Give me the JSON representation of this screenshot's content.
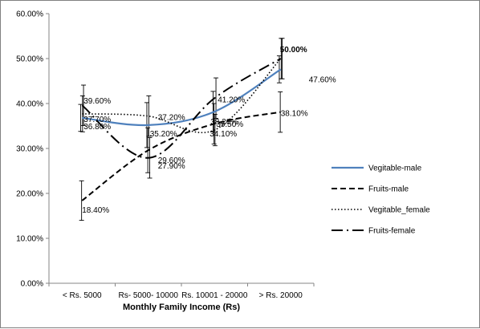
{
  "chart_data": {
    "type": "line",
    "categories": [
      "< Rs. 5000",
      "Rs- 5000- 10000",
      "Rs. 10001 - 20000",
      "> Rs. 20000"
    ],
    "xlabel": "Monthly Family Income (Rs)",
    "ylabel": "",
    "ylim": [
      0,
      0.6
    ],
    "yticks": [
      0,
      0.1,
      0.2,
      0.3,
      0.4,
      0.5,
      0.6
    ],
    "ytick_labels": [
      "0.00%",
      "10.00%",
      "20.00%",
      "30.00%",
      "40.00%",
      "50.00%",
      "60.00%"
    ],
    "grid": false,
    "legend_position": "right",
    "series": [
      {
        "name": "Vegitable-male",
        "values": [
          0.368,
          0.352,
          0.382,
          0.476
        ],
        "labels": [
          "36.80%",
          "35.20%",
          "38.20%",
          "47.60%"
        ],
        "color": "#4F81BD",
        "style": "solid",
        "errors": [
          0.03,
          0.05,
          0.045,
          0.03
        ]
      },
      {
        "name": "Fruits-male",
        "values": [
          0.184,
          0.296,
          0.355,
          0.381
        ],
        "labels": [
          "18.40%",
          "29.60%",
          "35.50%",
          "38.10%"
        ],
        "color": "#000000",
        "style": "dashed",
        "errors": [
          0.044,
          0.05,
          0.045,
          0.045
        ]
      },
      {
        "name": "Vegitable_female",
        "values": [
          0.377,
          0.372,
          0.341,
          0.5
        ],
        "labels": [
          "37.70%",
          "37.20%",
          "34.10%",
          "50.00%"
        ],
        "color": "#000000",
        "style": "dotted",
        "errors": [
          0.04,
          0.045,
          0.035,
          0.045
        ]
      },
      {
        "name": "Fruits-female",
        "values": [
          0.396,
          0.279,
          0.412,
          0.5
        ],
        "labels": [
          "39.60%",
          "27.90%",
          "41.20%",
          "50.00%"
        ],
        "color": "#000000",
        "style": "dashdot",
        "errors": [
          0.045,
          0.045,
          0.045,
          0.045
        ]
      }
    ]
  }
}
